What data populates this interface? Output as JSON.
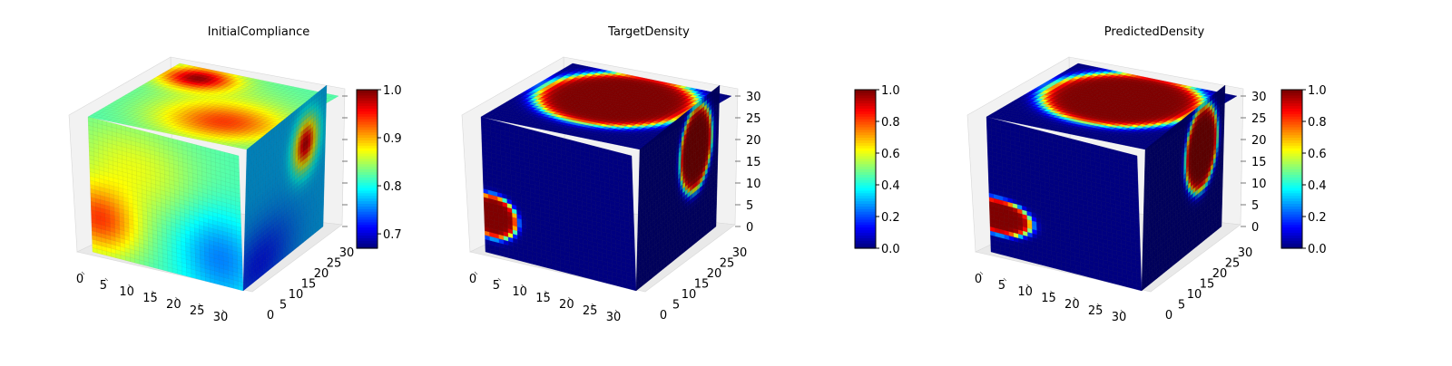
{
  "chart_data": [
    {
      "type": "heatmap",
      "title": "InitialCompliance",
      "x_ticks": [
        "0",
        "5",
        "10",
        "15",
        "20",
        "25",
        "30"
      ],
      "y_ticks": [
        "0",
        "5",
        "10",
        "15",
        "20",
        "25",
        "30"
      ],
      "z_ticks": [],
      "grid_size": 32,
      "colormap": "jet",
      "colorbar": {
        "range": [
          0.67,
          1.0
        ],
        "ticks": [
          "0.7",
          "0.8",
          "0.9",
          "1.0"
        ],
        "tick_values": [
          0.7,
          0.8,
          0.9,
          1.0
        ]
      },
      "pattern": "compliance"
    },
    {
      "type": "heatmap",
      "title": "TargetDensity",
      "x_ticks": [
        "0",
        "5",
        "10",
        "15",
        "20",
        "25",
        "30"
      ],
      "y_ticks": [
        "0",
        "5",
        "10",
        "15",
        "20",
        "25",
        "30"
      ],
      "z_ticks": [
        "0",
        "5",
        "10",
        "15",
        "20",
        "25",
        "30"
      ],
      "grid_size": 32,
      "colormap": "jet",
      "colorbar": {
        "range": [
          0.0,
          1.0
        ],
        "ticks": [
          "0.0",
          "0.2",
          "0.4",
          "0.6",
          "0.8",
          "1.0"
        ],
        "tick_values": [
          0.0,
          0.2,
          0.4,
          0.6,
          0.8,
          1.0
        ]
      },
      "pattern": "target"
    },
    {
      "type": "heatmap",
      "title": "PredictedDensity",
      "x_ticks": [
        "0",
        "5",
        "10",
        "15",
        "20",
        "25",
        "30"
      ],
      "y_ticks": [
        "0",
        "5",
        "10",
        "15",
        "20",
        "25",
        "30"
      ],
      "z_ticks": [
        "0",
        "5",
        "10",
        "15",
        "20",
        "25",
        "30"
      ],
      "grid_size": 32,
      "colormap": "jet",
      "colorbar": {
        "range": [
          0.0,
          1.0
        ],
        "ticks": [
          "0.0",
          "0.2",
          "0.4",
          "0.6",
          "0.8",
          "1.0"
        ],
        "tick_values": [
          0.0,
          0.2,
          0.4,
          0.6,
          0.8,
          1.0
        ]
      },
      "pattern": "predicted"
    }
  ]
}
